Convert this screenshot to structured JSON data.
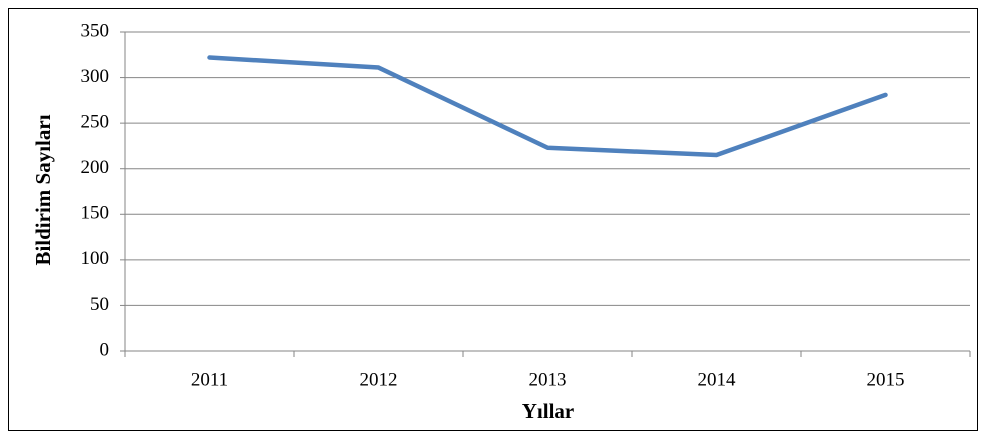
{
  "chart_data": {
    "type": "line",
    "x_label": "Yıllar",
    "y_label": "Bildirim Sayıları",
    "categories": [
      "2011",
      "2012",
      "2013",
      "2014",
      "2015"
    ],
    "series": [
      {
        "name": "Bildirim Sayıları",
        "color": "#4f81bd",
        "values": [
          322,
          311,
          223,
          215,
          281
        ]
      }
    ],
    "ylim": [
      0,
      350
    ],
    "yticks": [
      0,
      50,
      100,
      150,
      200,
      250,
      300,
      350
    ],
    "grid": true
  }
}
